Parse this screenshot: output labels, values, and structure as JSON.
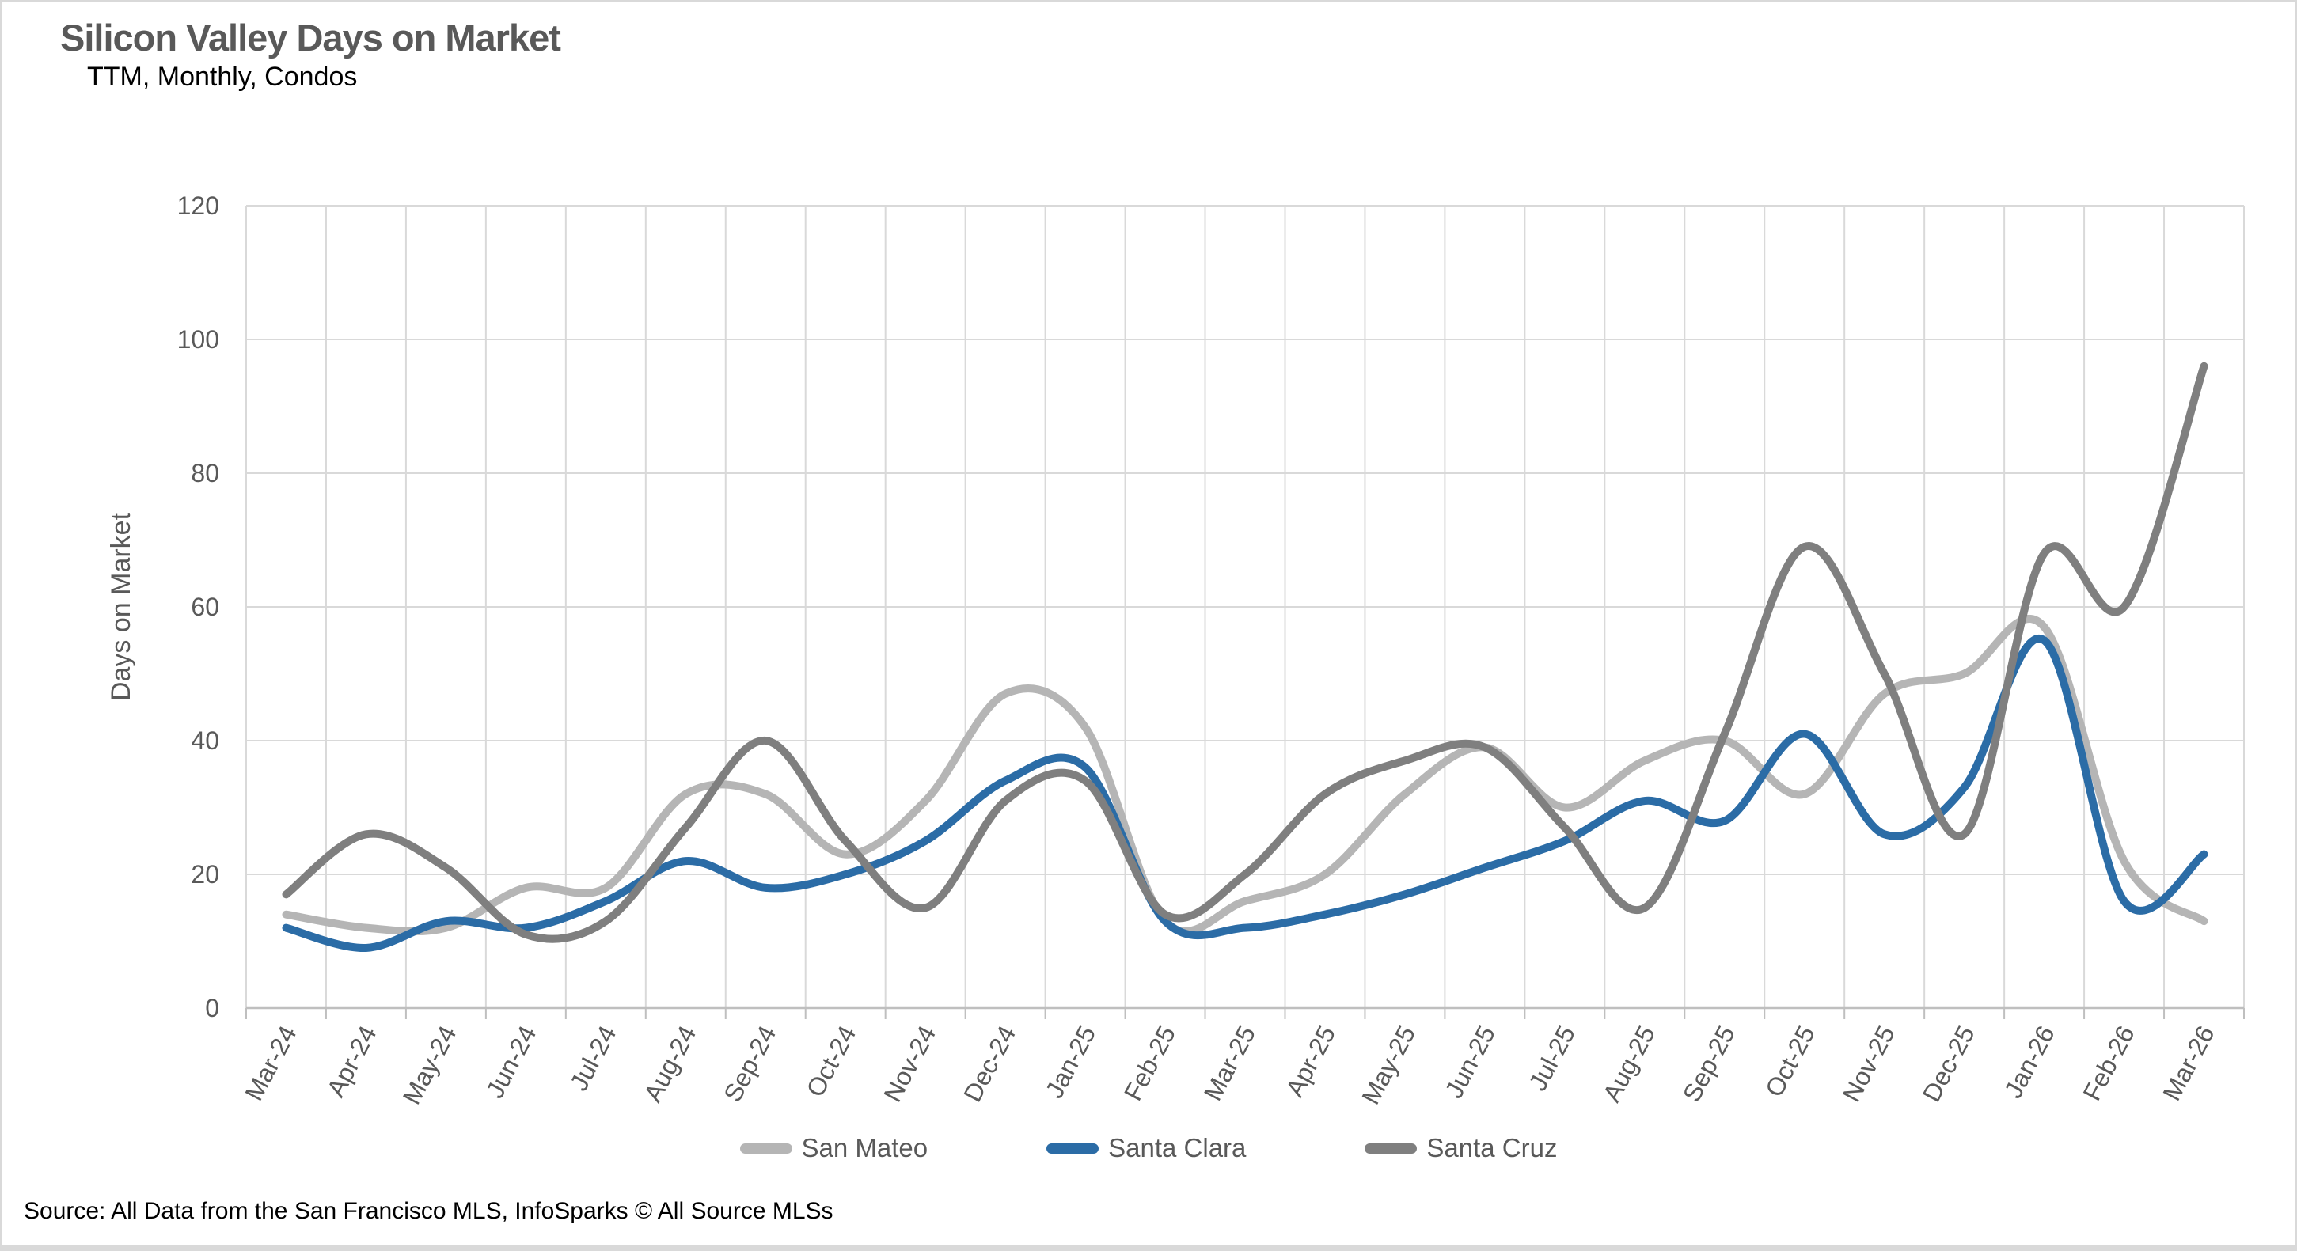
{
  "header": {
    "title": "Silicon Valley Days on Market",
    "subtitle": "TTM, Monthly, Condos"
  },
  "chart_data": {
    "type": "line",
    "title": "Silicon Valley Days on Market",
    "subtitle": "TTM, Monthly, Condos",
    "xlabel": "",
    "ylabel": "Days on Market",
    "ylim": [
      0,
      120
    ],
    "yticks": [
      0,
      20,
      40,
      60,
      80,
      100,
      120
    ],
    "grid": true,
    "smooth_lines": true,
    "legend_position": "bottom",
    "categories": [
      "Mar-24",
      "Apr-24",
      "May-24",
      "Jun-24",
      "Jul-24",
      "Aug-24",
      "Sep-24",
      "Oct-24",
      "Nov-24",
      "Dec-24",
      "Jan-25",
      "Feb-25",
      "Mar-25",
      "Apr-25",
      "May-25",
      "Jun-25",
      "Jul-25",
      "Aug-25",
      "Sep-25",
      "Oct-25",
      "Nov-25",
      "Dec-25",
      "Jan-26",
      "Feb-26",
      "Mar-26"
    ],
    "series": [
      {
        "name": "San Mateo",
        "color": "#b5b5b5",
        "values": [
          14,
          12,
          12,
          18,
          18,
          32,
          32,
          23,
          31,
          47,
          42,
          13,
          16,
          20,
          32,
          39,
          30,
          37,
          40,
          32,
          47,
          50,
          57,
          22,
          13
        ]
      },
      {
        "name": "Santa Clara",
        "color": "#2b6ca6",
        "values": [
          12,
          9,
          13,
          12,
          16,
          22,
          18,
          20,
          25,
          34,
          36,
          13,
          12,
          14,
          17,
          21,
          25,
          31,
          28,
          41,
          26,
          33,
          55,
          16,
          23
        ]
      },
      {
        "name": "Santa Cruz",
        "color": "#7f7f7f",
        "values": [
          17,
          26,
          21,
          11,
          13,
          27,
          40,
          25,
          15,
          31,
          34,
          14,
          20,
          32,
          37,
          39,
          27,
          15,
          41,
          69,
          50,
          26,
          68,
          60,
          96
        ]
      }
    ]
  },
  "footer": {
    "source": "Source: All Data from the San Francisco MLS, InfoSparks © All Source MLSs"
  },
  "style": {
    "background": "#ffffff",
    "grid_color": "#d9d9d9",
    "axis_color": "#bfbfbf",
    "tick_label_color": "#595959",
    "title_color": "#595959",
    "line_width": 10
  }
}
